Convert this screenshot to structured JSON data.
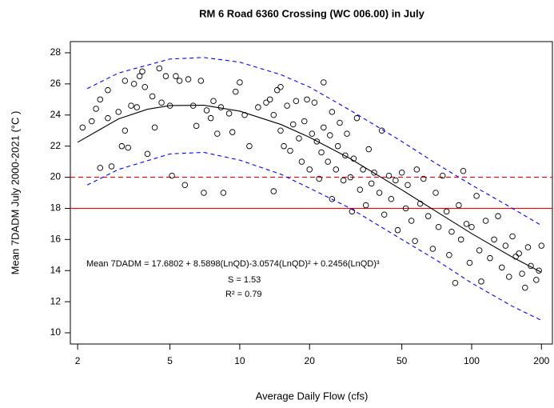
{
  "chart_data": {
    "type": "scatter",
    "title": "RM 6 Road 6360 Crossing (WC 006.00) in July",
    "x_label": "Average Daily Flow (cfs)",
    "y_label": "Mean 7DADM July 2000-2021 (°C )",
    "annotations": [
      "Mean 7DADM = 17.6802 + 8.5898(LnQD)-3.0574(LnQD)² + 0.2456(LnQD)³",
      "S = 1.53",
      "R² = 0.79"
    ],
    "xlog": true,
    "xlim": [
      1.86,
      223
    ],
    "xticks": [
      2,
      5,
      10,
      20,
      50,
      100,
      200
    ],
    "ylim": [
      9.28,
      28.72
    ],
    "yticks": [
      10,
      12,
      14,
      16,
      18,
      20,
      22,
      24,
      26,
      28
    ],
    "hlines": [
      {
        "value": 20,
        "color": "#ff0000",
        "style": "dashed"
      },
      {
        "value": 18,
        "color": "#ff0000",
        "style": "solid"
      }
    ],
    "series": [
      {
        "type": "scatter",
        "color": "#000000",
        "x": [
          2.1,
          2.3,
          2.4,
          2.5,
          2.5,
          2.7,
          2.7,
          2.8,
          3.0,
          3.1,
          3.2,
          3.2,
          3.3,
          3.4,
          3.5,
          3.6,
          3.7,
          3.8,
          3.9,
          4.0,
          4.2,
          4.3,
          4.5,
          4.6,
          4.8,
          5.0,
          5.1,
          5.3,
          5.5,
          5.8,
          6.0,
          6.3,
          6.5,
          6.8,
          7.0,
          7.2,
          7.5,
          7.7,
          8.0,
          8.3,
          8.5,
          9.0,
          9.3,
          9.6,
          10,
          10.5,
          11,
          12,
          13,
          13.5,
          14,
          14,
          14.5,
          15,
          15,
          15.5,
          16,
          16.5,
          17,
          17.5,
          18,
          18.5,
          19,
          19.5,
          20,
          20.5,
          21,
          21.5,
          22,
          22.5,
          23,
          23,
          24,
          24.5,
          25,
          25,
          26,
          26.5,
          27,
          28,
          28.5,
          29,
          30,
          30.5,
          31,
          32,
          33,
          34,
          35,
          36,
          37,
          38,
          40,
          41,
          42,
          44,
          45,
          47,
          48,
          50,
          52,
          53,
          55,
          57,
          58,
          60,
          62,
          65,
          68,
          70,
          72,
          75,
          78,
          80,
          82,
          85,
          88,
          90,
          92,
          95,
          98,
          100,
          105,
          108,
          110,
          115,
          120,
          125,
          130,
          135,
          140,
          145,
          150,
          155,
          160,
          165,
          170,
          175,
          180,
          190,
          200,
          195
        ],
        "values": [
          23.2,
          23.6,
          24.4,
          25.0,
          20.6,
          25.6,
          23.8,
          20.7,
          24.2,
          22.0,
          26.2,
          23.0,
          21.9,
          24.6,
          26.0,
          24.5,
          26.5,
          26.8,
          25.8,
          21.5,
          25.2,
          23.2,
          27.0,
          24.8,
          26.5,
          24.6,
          20.1,
          26.5,
          26.2,
          19.5,
          26.3,
          24.6,
          23.3,
          26.2,
          19.0,
          24.3,
          23.8,
          24.9,
          22.8,
          24.5,
          19.0,
          24.1,
          22.9,
          25.5,
          26.1,
          24.0,
          22.0,
          24.5,
          24.8,
          25.0,
          19.1,
          24.0,
          25.6,
          23.0,
          25.8,
          22.0,
          24.6,
          21.7,
          23.4,
          24.9,
          22.5,
          21.0,
          23.6,
          25.0,
          20.5,
          22.8,
          24.8,
          22.3,
          19.9,
          21.6,
          26.1,
          23.2,
          21.0,
          22.7,
          18.6,
          24.2,
          20.5,
          22.0,
          23.5,
          19.8,
          21.4,
          22.8,
          20.0,
          17.8,
          21.2,
          23.8,
          19.2,
          20.5,
          18.2,
          21.8,
          19.6,
          20.3,
          19.0,
          23.0,
          17.6,
          20.1,
          18.6,
          19.8,
          16.6,
          20.3,
          18.0,
          19.5,
          17.2,
          15.9,
          20.5,
          18.3,
          19.9,
          17.5,
          15.4,
          19.0,
          16.8,
          20.1,
          17.8,
          15.0,
          16.5,
          13.2,
          18.2,
          16.0,
          20.4,
          17.0,
          14.5,
          16.8,
          18.8,
          15.3,
          13.3,
          17.2,
          14.8,
          16.0,
          17.5,
          14.2,
          15.6,
          13.6,
          16.2,
          14.9,
          15.1,
          13.8,
          12.9,
          15.5,
          14.3,
          13.4,
          15.6,
          14.0
        ]
      },
      {
        "type": "line",
        "color": "#000000",
        "style": "solid",
        "x": [
          2,
          3,
          4,
          5,
          7,
          10,
          15,
          20,
          30,
          50,
          70,
          100,
          150,
          200
        ],
        "values": [
          22.25,
          23.75,
          24.37,
          24.61,
          24.63,
          24.25,
          23.4,
          22.57,
          21.19,
          19.19,
          17.82,
          16.38,
          14.86,
          13.89
        ]
      },
      {
        "type": "line",
        "color": "#0000ff",
        "style": "dashed",
        "x": [
          2.2,
          3,
          5,
          7,
          10,
          15,
          20,
          30,
          50,
          70,
          100,
          150,
          200
        ],
        "values": [
          25.7,
          26.7,
          27.6,
          27.7,
          27.4,
          26.6,
          25.8,
          24.3,
          22.3,
          20.9,
          19.5,
          18.0,
          16.9
        ]
      },
      {
        "type": "line",
        "color": "#0000ff",
        "style": "dashed",
        "x": [
          2.2,
          3,
          5,
          7,
          10,
          15,
          20,
          30,
          50,
          70,
          100,
          150,
          200
        ],
        "values": [
          19.5,
          20.5,
          21.5,
          21.6,
          21.1,
          20.2,
          19.3,
          18.0,
          16.0,
          14.7,
          13.2,
          11.7,
          10.8
        ]
      }
    ]
  }
}
